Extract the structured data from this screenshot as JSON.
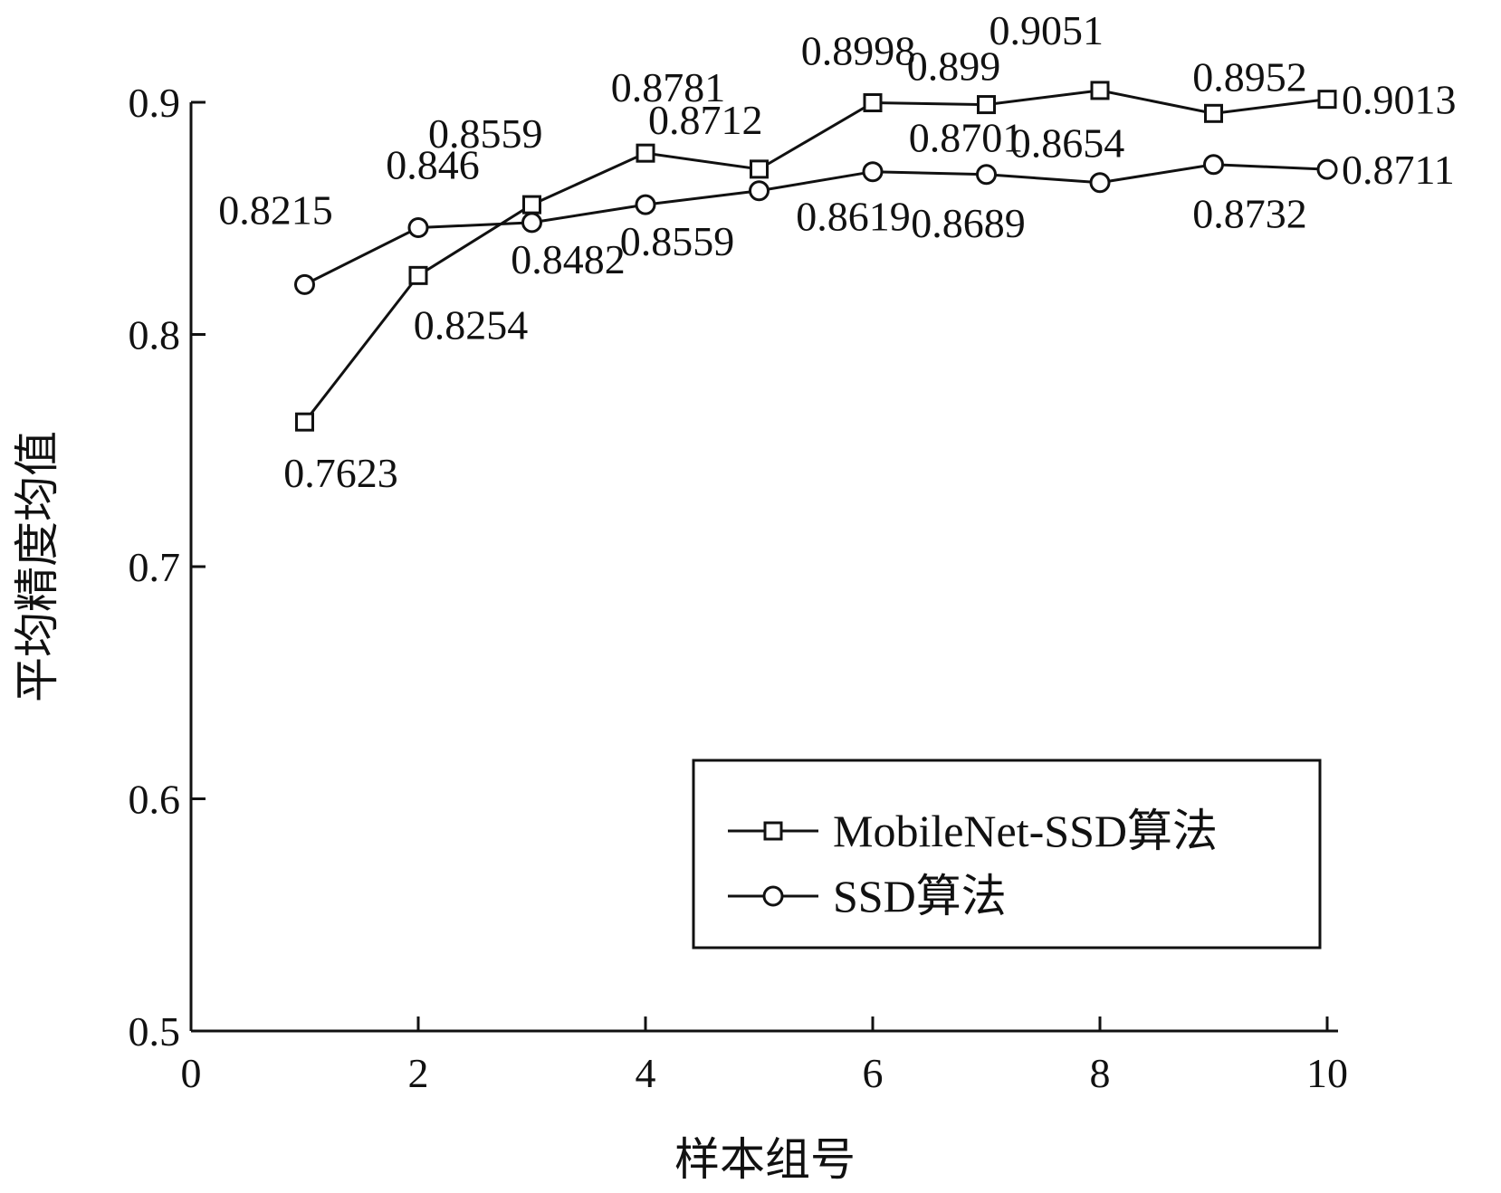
{
  "chart_data": {
    "type": "line",
    "xlabel": "样本组号",
    "ylabel": "平均精度均值",
    "xlim": [
      0,
      10
    ],
    "ylim": [
      0.5,
      0.9
    ],
    "xticks": [
      0,
      2,
      4,
      6,
      8,
      10
    ],
    "yticks": [
      0.5,
      0.6,
      0.7,
      0.8,
      0.9
    ],
    "xtick_labels": [
      "0",
      "2",
      "4",
      "6",
      "8",
      "10"
    ],
    "ytick_labels": [
      "0.5",
      "0.6",
      "0.7",
      "0.8",
      "0.9"
    ],
    "grid": false,
    "legend_position": "bottom-right",
    "x": [
      1,
      2,
      3,
      4,
      5,
      6,
      7,
      8,
      9,
      10
    ],
    "series": [
      {
        "name": "MobileNet-SSD算法",
        "marker": "square",
        "values": [
          0.7623,
          0.8254,
          0.8559,
          0.8781,
          0.8712,
          0.8998,
          0.899,
          0.9051,
          0.8952,
          0.9013
        ],
        "labels": [
          "0.7623",
          "0.8254",
          "0.8559",
          "0.8781",
          "0.8712",
          "0.8998",
          "0.899",
          "0.9051",
          "0.8952",
          "0.9013"
        ]
      },
      {
        "name": "SSD算法",
        "marker": "circle",
        "values": [
          0.8215,
          0.846,
          0.8482,
          0.8559,
          0.8619,
          0.8701,
          0.8689,
          0.8654,
          0.8732,
          0.8711
        ],
        "labels": [
          "0.8215",
          "0.846",
          "0.8482",
          "0.8559",
          "0.8619",
          "0.8701",
          "0.8689",
          "0.8654",
          "0.8732",
          "0.8711"
        ]
      }
    ],
    "colors": {
      "line": "#111111",
      "background": "#ffffff"
    }
  }
}
